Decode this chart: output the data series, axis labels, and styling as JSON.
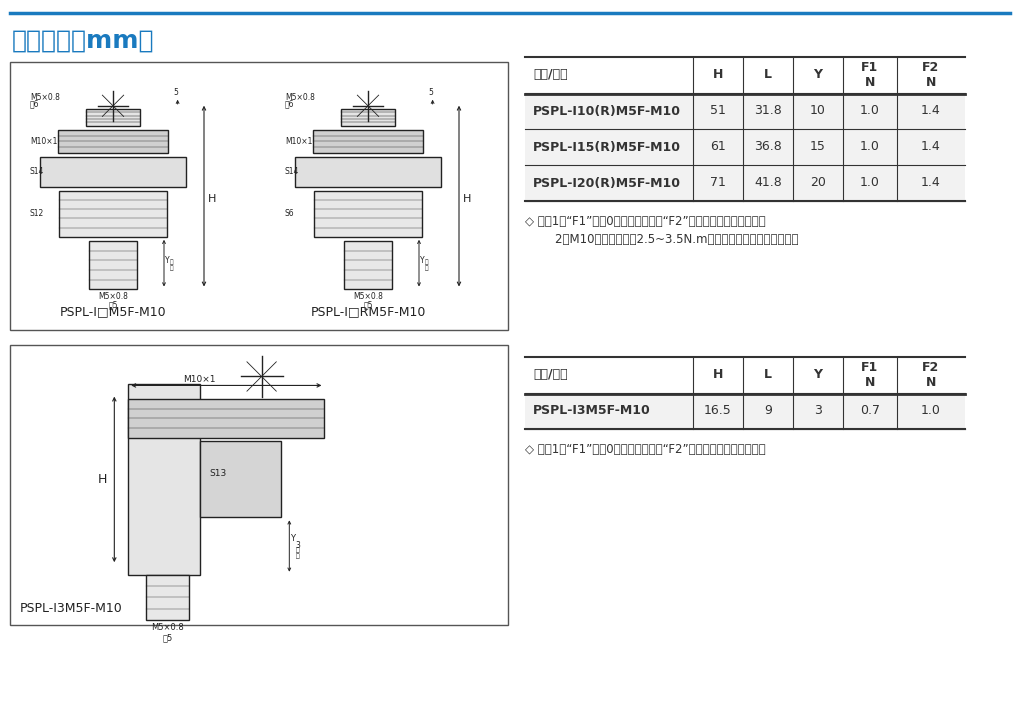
{
  "title": "尺寸规格（mm）",
  "title_color": "#1a7abf",
  "title_fontsize": 18,
  "bg_color": "#ffffff",
  "top_line_color": "#1a7abf",
  "table1_headers": [
    "型号/尺寸",
    "H",
    "L",
    "Y",
    "F1\nN",
    "F2\nN"
  ],
  "table1_rows": [
    [
      "PSPL-I10(R)M5F-M10",
      "51",
      "31.8",
      "10",
      "1.0",
      "1.4"
    ],
    [
      "PSPL-I15(R)M5F-M10",
      "61",
      "36.8",
      "15",
      "1.0",
      "1.4"
    ],
    [
      "PSPL-I20(R)M5F-M10",
      "71",
      "41.8",
      "20",
      "1.0",
      "1.4"
    ]
  ],
  "table1_note1": "◇ 注：1、“F1”表示0行程弹簧弹力，“F2”表示行程一半弹簧弹力。",
  "table1_note2": "        2、M10螺母锁紧力知2.5~3.5N.m，请在指定力知范围内作业。",
  "table2_headers": [
    "型号/尺寸",
    "H",
    "L",
    "Y",
    "F1\nN",
    "F2\nN"
  ],
  "table2_rows": [
    [
      "PSPL-I3M5F-M10",
      "16.5",
      "9",
      "3",
      "0.7",
      "1.0"
    ]
  ],
  "table2_note1": "◇ 注：1、“F1”表示0行程弹簧弹力，“F2”表示行程一半弹簧弹力。",
  "diagram1_label": "PSPL-I□M5F-M10",
  "diagram2_label": "PSPL-I□RM5F-M10",
  "diagram3_label": "PSPL-I3M5F-M10",
  "line_color": "#000000"
}
